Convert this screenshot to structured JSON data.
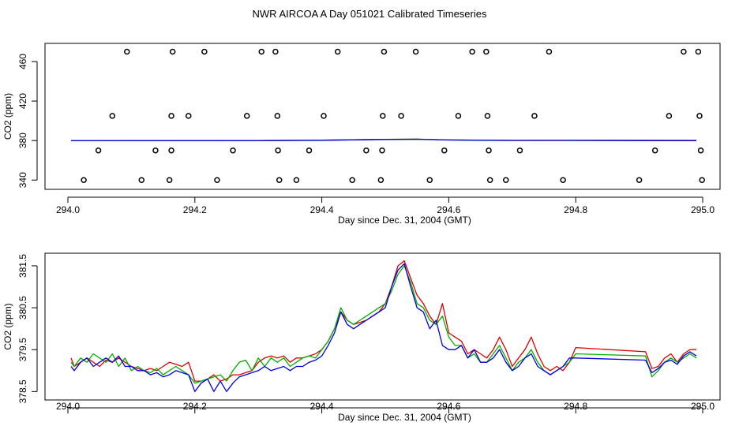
{
  "figure_title": "NWR AIRCOA A  Day 051021  Calibrated Timeseries",
  "colors": {
    "series_red": "#e00000",
    "series_green": "#00b000",
    "series_blue": "#0000e0",
    "marker": "#000000"
  },
  "chart_data": [
    {
      "type": "scatter",
      "title": "",
      "xlabel": "Day since Dec. 31, 2004 (GMT)",
      "ylabel": "CO2 (ppm)",
      "xlim": [
        294.0,
        295.0
      ],
      "ylim": [
        337,
        472
      ],
      "x_ticks": [
        "294.0",
        "294.2",
        "294.4",
        "294.6",
        "294.8",
        "295.0"
      ],
      "y_ticks": [
        "340",
        "380",
        "420",
        "460"
      ],
      "grid": false,
      "points": {
        "x": [
          294.025,
          294.048,
          294.07,
          294.093,
          294.116,
          294.138,
          294.16,
          294.163,
          294.165,
          294.163,
          294.19,
          294.215,
          294.235,
          294.26,
          294.282,
          294.305,
          294.327,
          294.33,
          294.331,
          294.333,
          294.36,
          294.38,
          294.403,
          294.425,
          294.448,
          294.47,
          294.493,
          294.495,
          294.496,
          294.498,
          294.525,
          294.548,
          294.57,
          294.593,
          294.615,
          294.637,
          294.659,
          294.661,
          294.663,
          294.665,
          294.69,
          294.712,
          294.735,
          294.758,
          294.78,
          294.9,
          294.925,
          294.947,
          294.97,
          294.993,
          294.995,
          294.997,
          294.999
        ],
        "y": [
          340,
          370,
          405,
          470,
          340,
          370,
          340,
          370,
          470,
          405,
          405,
          470,
          340,
          370,
          405,
          470,
          470,
          405,
          370,
          340,
          340,
          370,
          405,
          470,
          340,
          370,
          340,
          370,
          405,
          470,
          405,
          470,
          340,
          370,
          405,
          470,
          470,
          405,
          370,
          340,
          340,
          370,
          405,
          470,
          340,
          340,
          370,
          405,
          470,
          470,
          405,
          370,
          340
        ]
      },
      "series": [
        {
          "color": "red",
          "x": [
            294.005,
            294.1,
            294.2,
            294.3,
            294.4,
            294.5,
            294.55,
            294.6,
            294.7,
            294.8,
            294.9,
            294.99
          ],
          "y": [
            380.0,
            380.0,
            380.0,
            380.0,
            380.4,
            381.2,
            381.4,
            380.6,
            380.2,
            380.3,
            380.3,
            380.2
          ]
        },
        {
          "color": "green",
          "x": [
            294.005,
            294.1,
            294.2,
            294.3,
            294.4,
            294.5,
            294.55,
            294.6,
            294.7,
            294.8,
            294.9,
            294.99
          ],
          "y": [
            379.9,
            380.0,
            379.9,
            380.0,
            380.4,
            381.2,
            381.4,
            380.6,
            380.1,
            380.1,
            380.1,
            380.0
          ]
        },
        {
          "color": "blue",
          "x": [
            294.005,
            294.1,
            294.2,
            294.3,
            294.4,
            294.5,
            294.55,
            294.6,
            294.7,
            294.8,
            294.9,
            294.99
          ],
          "y": [
            379.8,
            379.9,
            379.9,
            380.0,
            380.3,
            381.1,
            381.3,
            380.5,
            380.1,
            380.1,
            380.0,
            380.0
          ]
        }
      ]
    },
    {
      "type": "line",
      "title": "",
      "xlabel": "Day since Dec. 31, 2004 (GMT)",
      "ylabel": "CO2 (ppm)",
      "xlim": [
        294.0,
        295.0
      ],
      "ylim": [
        378.45,
        381.65
      ],
      "x_ticks": [
        "294.0",
        "294.2",
        "294.4",
        "294.6",
        "294.8",
        "295.0"
      ],
      "y_ticks": [
        "378.5",
        "379.5",
        "380.5",
        "381.5"
      ],
      "grid": false,
      "series": [
        {
          "color": "red",
          "x": [
            294.005,
            294.01,
            294.02,
            294.03,
            294.04,
            294.05,
            294.06,
            294.07,
            294.08,
            294.09,
            294.1,
            294.11,
            294.12,
            294.13,
            294.14,
            294.15,
            294.16,
            294.17,
            294.18,
            294.19,
            294.2,
            294.21,
            294.22,
            294.23,
            294.24,
            294.25,
            294.26,
            294.27,
            294.28,
            294.29,
            294.3,
            294.31,
            294.32,
            294.33,
            294.34,
            294.35,
            294.36,
            294.37,
            294.38,
            294.39,
            294.4,
            294.41,
            294.42,
            294.43,
            294.44,
            294.45,
            294.46,
            294.47,
            294.48,
            294.49,
            294.5,
            294.51,
            294.52,
            294.53,
            294.54,
            294.55,
            294.56,
            294.57,
            294.58,
            294.59,
            294.6,
            294.61,
            294.62,
            294.63,
            294.64,
            294.65,
            294.66,
            294.67,
            294.68,
            294.69,
            294.7,
            294.71,
            294.72,
            294.73,
            294.74,
            294.75,
            294.76,
            294.77,
            294.78,
            294.79,
            294.8,
            294.91,
            294.92,
            294.93,
            294.94,
            294.95,
            294.96,
            294.97,
            294.98,
            294.99
          ],
          "y": [
            379.3,
            379.1,
            379.2,
            379.3,
            379.2,
            379.1,
            379.25,
            379.2,
            379.3,
            379.2,
            379.1,
            379.05,
            379.0,
            379.05,
            379.0,
            379.1,
            379.2,
            379.15,
            379.1,
            379.2,
            378.75,
            378.75,
            378.8,
            378.9,
            378.75,
            378.8,
            378.9,
            378.9,
            378.95,
            379.0,
            379.2,
            379.3,
            379.35,
            379.3,
            379.35,
            379.2,
            379.3,
            379.3,
            379.35,
            379.4,
            379.5,
            379.7,
            380.0,
            380.4,
            380.2,
            380.1,
            380.15,
            380.2,
            380.3,
            380.4,
            380.6,
            381.0,
            381.5,
            381.62,
            381.2,
            380.8,
            380.6,
            380.3,
            380.1,
            380.6,
            379.9,
            379.8,
            379.7,
            379.4,
            379.5,
            379.4,
            379.3,
            379.5,
            379.8,
            379.5,
            379.1,
            379.3,
            379.5,
            379.8,
            379.4,
            379.1,
            379.0,
            379.1,
            379.0,
            379.2,
            379.55,
            379.45,
            379.05,
            379.1,
            379.3,
            379.4,
            379.2,
            379.4,
            379.5,
            379.5
          ]
        },
        {
          "color": "green",
          "x": [
            294.005,
            294.01,
            294.02,
            294.03,
            294.04,
            294.05,
            294.06,
            294.07,
            294.08,
            294.09,
            294.1,
            294.11,
            294.12,
            294.13,
            294.14,
            294.15,
            294.16,
            294.17,
            294.18,
            294.19,
            294.2,
            294.21,
            294.22,
            294.23,
            294.24,
            294.25,
            294.26,
            294.27,
            294.28,
            294.29,
            294.3,
            294.31,
            294.32,
            294.33,
            294.34,
            294.35,
            294.36,
            294.37,
            294.38,
            294.39,
            294.4,
            294.41,
            294.42,
            294.43,
            294.44,
            294.45,
            294.46,
            294.47,
            294.48,
            294.49,
            294.5,
            294.51,
            294.52,
            294.53,
            294.54,
            294.55,
            294.56,
            294.57,
            294.58,
            294.59,
            294.6,
            294.61,
            294.62,
            294.63,
            294.64,
            294.65,
            294.66,
            294.67,
            294.68,
            294.69,
            294.7,
            294.71,
            294.72,
            294.73,
            294.74,
            294.75,
            294.76,
            294.77,
            294.78,
            294.79,
            294.8,
            294.91,
            294.92,
            294.93,
            294.94,
            294.95,
            294.96,
            294.97,
            294.98,
            294.99
          ],
          "y": [
            379.2,
            379.1,
            379.3,
            379.2,
            379.4,
            379.3,
            379.2,
            379.4,
            379.1,
            379.3,
            379.0,
            379.1,
            379.0,
            378.95,
            379.05,
            378.9,
            379.0,
            379.1,
            379.0,
            378.9,
            378.7,
            378.75,
            378.8,
            378.85,
            378.9,
            378.75,
            379.0,
            379.2,
            379.25,
            379.0,
            379.3,
            379.1,
            379.3,
            379.2,
            379.3,
            379.1,
            379.2,
            379.3,
            379.35,
            379.3,
            379.5,
            379.7,
            380.0,
            380.5,
            380.2,
            380.1,
            380.2,
            380.3,
            380.4,
            380.5,
            380.6,
            380.9,
            381.3,
            381.5,
            381.1,
            380.6,
            380.5,
            380.2,
            380.1,
            380.3,
            379.8,
            379.6,
            379.6,
            379.3,
            379.4,
            379.2,
            379.2,
            379.4,
            379.6,
            379.3,
            379.0,
            379.2,
            379.3,
            379.5,
            379.2,
            379.0,
            378.9,
            379.0,
            379.1,
            379.2,
            379.4,
            379.35,
            378.85,
            379.0,
            379.2,
            379.3,
            379.2,
            379.3,
            379.4,
            379.3
          ]
        },
        {
          "color": "blue",
          "x": [
            294.005,
            294.01,
            294.02,
            294.03,
            294.04,
            294.05,
            294.06,
            294.07,
            294.08,
            294.09,
            294.1,
            294.11,
            294.12,
            294.13,
            294.14,
            294.15,
            294.16,
            294.17,
            294.18,
            294.19,
            294.2,
            294.21,
            294.22,
            294.23,
            294.24,
            294.25,
            294.26,
            294.27,
            294.28,
            294.29,
            294.3,
            294.31,
            294.32,
            294.33,
            294.34,
            294.35,
            294.36,
            294.37,
            294.38,
            294.39,
            294.4,
            294.41,
            294.42,
            294.43,
            294.44,
            294.45,
            294.46,
            294.47,
            294.48,
            294.49,
            294.5,
            294.51,
            294.52,
            294.53,
            294.54,
            294.55,
            294.56,
            294.57,
            294.58,
            294.59,
            294.6,
            294.61,
            294.62,
            294.63,
            294.64,
            294.65,
            294.66,
            294.67,
            294.68,
            294.69,
            294.7,
            294.71,
            294.72,
            294.73,
            294.74,
            294.75,
            294.76,
            294.77,
            294.78,
            294.79,
            294.8,
            294.91,
            294.92,
            294.93,
            294.94,
            294.95,
            294.96,
            294.97,
            294.98,
            294.99
          ],
          "y": [
            379.1,
            379.0,
            379.2,
            379.3,
            379.1,
            379.2,
            379.3,
            379.2,
            379.35,
            379.1,
            379.1,
            379.0,
            379.0,
            378.9,
            378.95,
            378.85,
            378.9,
            379.0,
            378.95,
            378.9,
            378.5,
            378.7,
            378.8,
            378.5,
            378.75,
            378.5,
            378.7,
            378.85,
            378.9,
            378.95,
            379.0,
            379.1,
            379.0,
            379.05,
            379.1,
            379.0,
            379.1,
            379.1,
            379.2,
            379.25,
            379.35,
            379.6,
            379.9,
            380.4,
            380.1,
            380.0,
            380.1,
            380.2,
            380.3,
            380.4,
            380.5,
            381.0,
            381.4,
            381.55,
            381.0,
            380.5,
            380.4,
            380.0,
            380.2,
            379.6,
            379.5,
            379.5,
            379.6,
            379.3,
            379.5,
            379.2,
            379.2,
            379.3,
            379.5,
            379.2,
            379.0,
            379.1,
            379.3,
            379.4,
            379.1,
            379.0,
            378.9,
            379.0,
            379.1,
            379.3,
            379.3,
            379.25,
            378.95,
            379.05,
            379.2,
            379.25,
            379.15,
            379.35,
            379.45,
            379.35
          ]
        }
      ]
    }
  ]
}
